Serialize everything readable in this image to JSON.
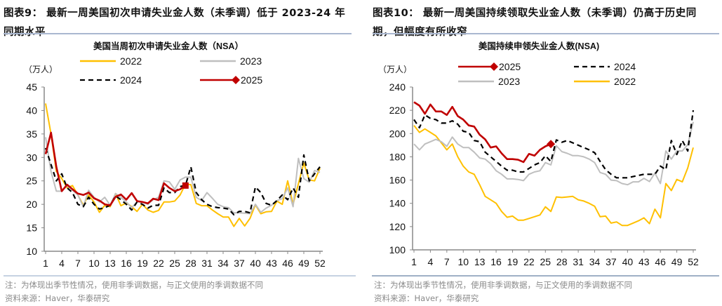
{
  "left": {
    "title_lines": [
      "图表9：  最新一周美国初次申请失业金人数（未季调）低于 2023-24 年",
      "同期水平"
    ],
    "notes": [
      "注：为体现出季节性情况，使用非季调数据，与正文使用的季调数据不同",
      "资料来源：Haver，华泰研究"
    ]
  },
  "right": {
    "title_lines": [
      "图表10：  最新一周美国持续领取失业金人数（未季调）仍高于历史同",
      "期，但幅度有所收窄"
    ],
    "notes": [
      "注：为体现出季节性情况，使用非季调数据，与正文使用的季调数据不同",
      "资料来源：Haver，华泰研究"
    ]
  },
  "chart_data": [
    {
      "type": "line",
      "title": "美国当周初次申请失业金人数（NSA）",
      "ylabel": "（万人）",
      "xlabel": "",
      "ylim": [
        10,
        45
      ],
      "yticks": [
        "10",
        "15",
        "20",
        "25",
        "30",
        "35",
        "40",
        "45"
      ],
      "xticks": [
        "1",
        "4",
        "7",
        "10",
        "13",
        "16",
        "19",
        "22",
        "25",
        "28",
        "31",
        "34",
        "37",
        "40",
        "43",
        "46",
        "49",
        "52"
      ],
      "x": "week 1-52",
      "grid": false,
      "legend": [
        "2022",
        "2023",
        "2024",
        "2025"
      ],
      "series": [
        {
          "name": "2022",
          "color": "#FFC000",
          "style": "solid",
          "values": [
            41.5,
            35,
            27,
            25.5,
            23.5,
            24,
            22,
            19.8,
            22,
            20.5,
            18.3,
            19.8,
            19.5,
            22.3,
            19.7,
            20.3,
            19.5,
            18.5,
            20,
            18.8,
            18.3,
            18.7,
            20.5,
            20.5,
            20.7,
            22,
            24.3,
            24.2,
            20.2,
            19.7,
            19.7,
            18.8,
            18,
            17.3,
            17.3,
            15.3,
            17,
            15.4,
            17,
            19.9,
            18,
            18.4,
            18.5,
            20.7,
            20,
            25,
            20,
            24.4,
            28.8,
            25.2,
            25,
            27.7
          ]
        },
        {
          "name": "2023",
          "color": "#BFBFBF",
          "style": "solid",
          "values": [
            34.3,
            27,
            22.8,
            22.8,
            24,
            23,
            22,
            19.5,
            23,
            21.5,
            20.5,
            21.5,
            19.8,
            22.3,
            21.5,
            20.5,
            19.3,
            20.5,
            20.5,
            20,
            21,
            21.5,
            25,
            24.8,
            23.2,
            25.2,
            25.8,
            25.8,
            21.5,
            20.8,
            22.5,
            21.3,
            20,
            19.5,
            19.3,
            18.2,
            18.2,
            18.1,
            18,
            20,
            18.3,
            19.2,
            19.8,
            20.8,
            21.2,
            23.5,
            19.5,
            29.8,
            25.5,
            24.7,
            27.2,
            26.8
          ]
        },
        {
          "name": "2024",
          "color": "#000000",
          "style": "dashed",
          "values": [
            32,
            28.5,
            25,
            26.5,
            23.5,
            22.5,
            20,
            19.5,
            21.5,
            20,
            19,
            19.3,
            19.8,
            21.8,
            21,
            20,
            18.8,
            20.5,
            20,
            19.2,
            19.8,
            19.8,
            23.5,
            22.5,
            22.5,
            23.8,
            24,
            28,
            22.5,
            21,
            20,
            19.5,
            19.3,
            19.2,
            19,
            17.8,
            18.5,
            18.5,
            18.2,
            23.7,
            22.5,
            20.2,
            19.8,
            20.8,
            22,
            21,
            23.5,
            21.5,
            30.5,
            25,
            26.5,
            28
          ]
        },
        {
          "name": "2025",
          "color": "#C00000",
          "style": "solid-marker",
          "values": [
            30.7,
            35.3,
            28,
            22.8,
            24.2,
            23.2,
            22.3,
            22,
            22.5,
            21.3,
            20.8,
            20,
            19.8,
            21.6,
            22.1,
            21,
            22.4,
            20.7,
            20.5,
            20.2,
            21.2,
            20.9,
            24.5,
            23.5,
            22.8,
            23.2,
            24
          ]
        }
      ]
    },
    {
      "type": "line",
      "title": "美国持续申领失业金人数(NSA)",
      "ylabel": "（万人）",
      "xlabel": "",
      "ylim": [
        100,
        240
      ],
      "yticks": [
        "100",
        "120",
        "140",
        "160",
        "180",
        "200",
        "220",
        "240"
      ],
      "xticks": [
        "1",
        "4",
        "7",
        "10",
        "13",
        "16",
        "19",
        "22",
        "25",
        "28",
        "31",
        "34",
        "37",
        "40",
        "43",
        "46",
        "49",
        "52"
      ],
      "x": "week 1-52",
      "grid": false,
      "legend": [
        "2025",
        "2024",
        "2023",
        "2022"
      ],
      "series": [
        {
          "name": "2022",
          "color": "#FFC000",
          "style": "solid",
          "values": [
            207,
            201,
            204,
            201,
            198,
            192,
            186,
            191,
            180,
            172,
            167,
            165,
            156,
            146,
            143,
            140,
            133,
            128,
            129,
            125.5,
            125.5,
            127,
            128.5,
            130,
            137,
            133,
            145.5,
            145,
            145.5,
            146,
            143,
            142,
            140,
            137.5,
            128.5,
            129,
            123,
            124,
            121,
            121,
            123,
            125,
            127.5,
            122.5,
            135,
            127.5,
            157,
            151,
            160.5,
            158.5,
            170.5,
            188
          ]
        },
        {
          "name": "2023",
          "color": "#BFBFBF",
          "style": "solid",
          "values": [
            191,
            186,
            191,
            193,
            195,
            193,
            189,
            197,
            191,
            188,
            188,
            184,
            179,
            178,
            174,
            168,
            165,
            161,
            161,
            160.5,
            159.5,
            165,
            167,
            168,
            175,
            173,
            189.5,
            184.5,
            183,
            181,
            181,
            180,
            178,
            175,
            166.5,
            165,
            160,
            159.5,
            157,
            156,
            158.5,
            158.5,
            161.5,
            158.7,
            166,
            157,
            185,
            178,
            185,
            185,
            190.5,
            210
          ]
        },
        {
          "name": "2024",
          "color": "#000000",
          "style": "dashed",
          "values": [
            212,
            205,
            216,
            213,
            212,
            209,
            209,
            211,
            208,
            202,
            201,
            194,
            193,
            184,
            180,
            176,
            172,
            168.5,
            168.5,
            167,
            167,
            170,
            173,
            175,
            181,
            176,
            194.5,
            192.5,
            194,
            192,
            190,
            188,
            186,
            183.5,
            176,
            169,
            165,
            162,
            162,
            162,
            163,
            164,
            165,
            165,
            165,
            172,
            169,
            194,
            182,
            194,
            185,
            220
          ]
        },
        {
          "name": "2025",
          "color": "#C00000",
          "style": "solid-marker",
          "values": [
            227,
            224,
            217,
            225,
            219,
            219,
            216,
            223,
            215,
            212,
            207,
            206,
            199,
            195,
            188,
            189,
            183,
            178,
            178,
            177.5,
            175.5,
            182.5,
            181,
            186,
            189,
            191
          ]
        }
      ]
    }
  ]
}
